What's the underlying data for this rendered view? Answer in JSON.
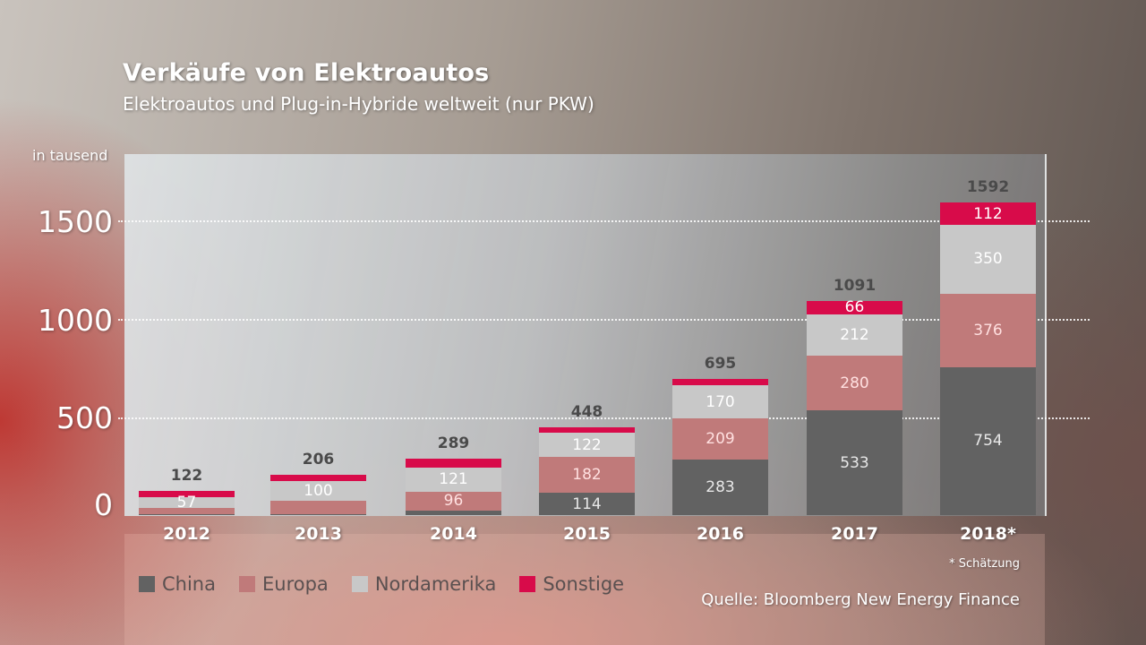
{
  "header": {
    "title": "Verkäufe von Elektroautos",
    "subtitle": "Elektroautos und Plug-in-Hybride weltweit (nur PKW)"
  },
  "axis": {
    "unit_label": "in tausend",
    "ticks": [
      "0",
      "500",
      "1000",
      "1500"
    ]
  },
  "legend": [
    {
      "label": "China",
      "color": "#626262"
    },
    {
      "label": "Europa",
      "color": "#c07a7a"
    },
    {
      "label": "Nordamerika",
      "color": "#c8c8c8"
    },
    {
      "label": "Sonstige",
      "color": "#d80b4a"
    }
  ],
  "footer": {
    "note": "* Schätzung",
    "source": "Quelle: Bloomberg New Energy Finance"
  },
  "bars": [
    {
      "year": "2012",
      "total": "122",
      "segments": {
        "china": "",
        "europa": "",
        "nordamerika": "57",
        "sonstige": ""
      }
    },
    {
      "year": "2013",
      "total": "206",
      "segments": {
        "china": "",
        "europa": "",
        "nordamerika": "100",
        "sonstige": ""
      }
    },
    {
      "year": "2014",
      "total": "289",
      "segments": {
        "china": "",
        "europa": "96",
        "nordamerika": "121",
        "sonstige": ""
      }
    },
    {
      "year": "2015",
      "total": "448",
      "segments": {
        "china": "114",
        "europa": "182",
        "nordamerika": "122",
        "sonstige": ""
      }
    },
    {
      "year": "2016",
      "total": "695",
      "segments": {
        "china": "283",
        "europa": "209",
        "nordamerika": "170",
        "sonstige": ""
      }
    },
    {
      "year": "2017",
      "total": "1091",
      "segments": {
        "china": "533",
        "europa": "280",
        "nordamerika": "212",
        "sonstige": "66"
      }
    },
    {
      "year": "2018*",
      "total": "1592",
      "segments": {
        "china": "754",
        "europa": "376",
        "nordamerika": "350",
        "sonstige": "112"
      }
    }
  ],
  "chart_data": {
    "type": "bar",
    "stacked": true,
    "title": "Verkäufe von Elektroautos",
    "subtitle": "Elektroautos und Plug-in-Hybride weltweit (nur PKW)",
    "xlabel": "",
    "ylabel": "in tausend",
    "ylim": [
      0,
      1700
    ],
    "yticks": [
      0,
      500,
      1000,
      1500
    ],
    "grid": "horizontal dotted",
    "legend_position": "bottom-left",
    "categories": [
      "2012",
      "2013",
      "2014",
      "2015",
      "2016",
      "2017",
      "2018*"
    ],
    "series": [
      {
        "name": "China",
        "color": "#626262",
        "values": [
          5,
          3,
          25,
          114,
          283,
          533,
          754
        ]
      },
      {
        "name": "Europa",
        "color": "#c07a7a",
        "values": [
          30,
          72,
          96,
          182,
          209,
          280,
          376
        ]
      },
      {
        "name": "Nordamerika",
        "color": "#c8c8c8",
        "values": [
          57,
          100,
          121,
          122,
          170,
          212,
          350
        ]
      },
      {
        "name": "Sonstige",
        "color": "#d80b4a",
        "values": [
          30,
          31,
          47,
          30,
          33,
          66,
          112
        ]
      }
    ],
    "totals": [
      122,
      206,
      289,
      448,
      695,
      1091,
      1592
    ],
    "annotations": [
      "* Schätzung",
      "Quelle: Bloomberg New Energy Finance"
    ]
  }
}
